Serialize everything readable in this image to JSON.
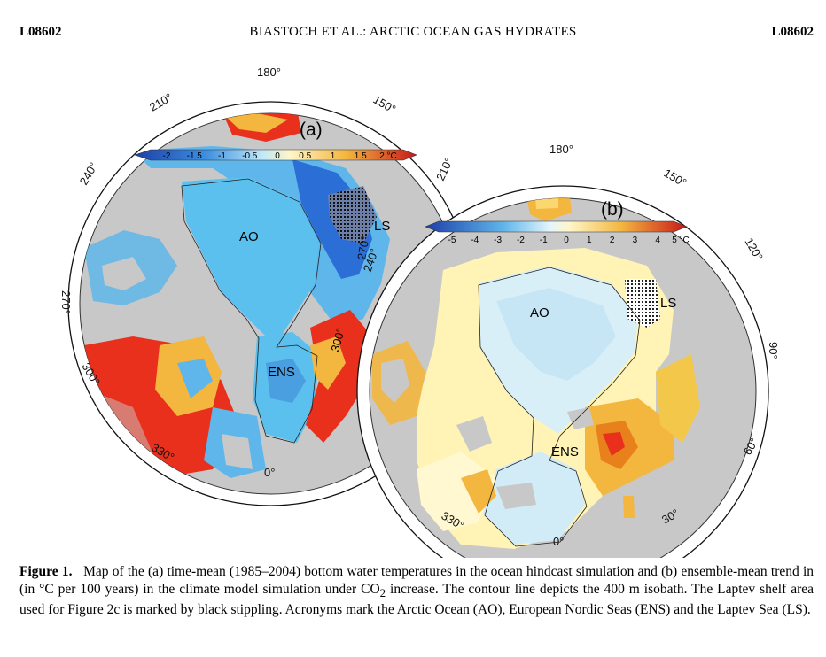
{
  "header": {
    "left": "L08602",
    "center": "BIASTOCH ET AL.: ARCTIC OCEAN GAS HYDRATES",
    "right": "L08602"
  },
  "panel_a": {
    "label": "(a)",
    "colorbar_ticks": [
      "-2",
      "-1.5",
      "-1",
      "-0.5",
      "0",
      "0.5",
      "1",
      "1.5",
      "2 °C"
    ],
    "longitude_labels": [
      "180°",
      "150°",
      "210°",
      "240°",
      "270°",
      "300°",
      "330°",
      "0°",
      "270°",
      "300°"
    ],
    "regions": [
      "AO",
      "ENS",
      "LS"
    ]
  },
  "panel_b": {
    "label": "(b)",
    "colorbar_ticks": [
      "-5",
      "-4",
      "-3",
      "-2",
      "-1",
      "0",
      "1",
      "2",
      "3",
      "4",
      "5 °C"
    ],
    "longitude_labels": [
      "180°",
      "150°",
      "120°",
      "90°",
      "60°",
      "30°",
      "0°",
      "330°",
      "210°",
      "240°"
    ],
    "regions": [
      "AO",
      "ENS",
      "LS"
    ]
  },
  "colors": {
    "land": "#c8c8c8",
    "cold": "#2b6fd6",
    "cool": "#5fb6ea",
    "neutral": "#fff8c8",
    "warm": "#f3b63f",
    "hot": "#e8301c"
  },
  "caption": {
    "label": "Figure 1.",
    "text_1": "Map of the (a) time-mean (1985–2004) bottom water temperatures in the ocean hindcast simulation and (b) ensemble-mean trend in (in °C per 100 years) in the climate model simulation under CO",
    "subscript": "2",
    "text_2": " increase. The contour line depicts the 400 m isobath. The Laptev shelf area used for Figure 2c is marked by black stippling. Acronyms mark the Arctic Ocean (AO), European Nordic Seas (ENS) and the Laptev Sea (LS)."
  }
}
